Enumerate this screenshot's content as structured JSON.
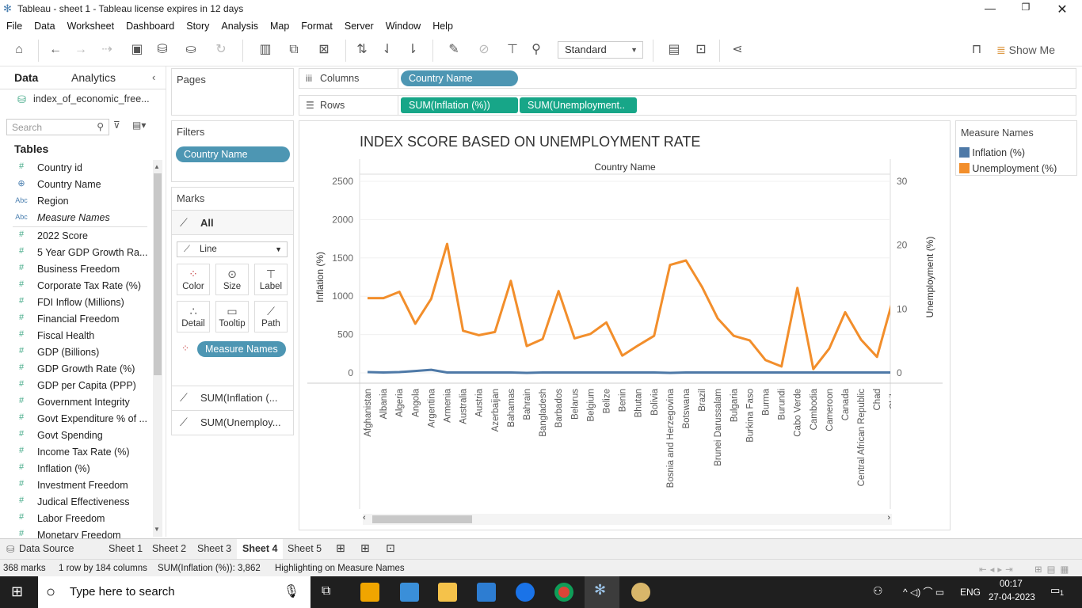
{
  "window": {
    "title": "Tableau - sheet 1 - Tableau license expires in 12 days"
  },
  "menu": [
    "File",
    "Data",
    "Worksheet",
    "Dashboard",
    "Story",
    "Analysis",
    "Map",
    "Format",
    "Server",
    "Window",
    "Help"
  ],
  "toolbar": {
    "view_mode": "Standard",
    "show_me": "Show Me"
  },
  "left_panel": {
    "tabs": [
      "Data",
      "Analytics"
    ],
    "datasource": "index_of_economic_free...",
    "search_placeholder": "Search",
    "tables_header": "Tables",
    "fields": [
      {
        "type": "#",
        "name": "Country id"
      },
      {
        "type": "globe",
        "name": "Country Name"
      },
      {
        "type": "Abc",
        "name": "Region"
      },
      {
        "type": "Abc",
        "name": "Measure Names"
      },
      {
        "type": "#",
        "name": "2022 Score"
      },
      {
        "type": "#",
        "name": "5 Year GDP Growth Ra..."
      },
      {
        "type": "#",
        "name": "Business Freedom"
      },
      {
        "type": "#",
        "name": "Corporate Tax Rate (%)"
      },
      {
        "type": "#",
        "name": "FDI Inflow (Millions)"
      },
      {
        "type": "#",
        "name": "Financial Freedom"
      },
      {
        "type": "#",
        "name": "Fiscal Health"
      },
      {
        "type": "#",
        "name": "GDP (Billions)"
      },
      {
        "type": "#",
        "name": "GDP Growth Rate (%)"
      },
      {
        "type": "#",
        "name": "GDP per Capita (PPP)"
      },
      {
        "type": "#",
        "name": "Government Integrity"
      },
      {
        "type": "#",
        "name": "Govt Expenditure % of ..."
      },
      {
        "type": "#",
        "name": "Govt Spending"
      },
      {
        "type": "#",
        "name": "Income Tax Rate (%)"
      },
      {
        "type": "#",
        "name": "Inflation (%)"
      },
      {
        "type": "#",
        "name": "Investment Freedom"
      },
      {
        "type": "#",
        "name": "Judical Effectiveness"
      },
      {
        "type": "#",
        "name": "Labor Freedom"
      },
      {
        "type": "#",
        "name": "Monetary Freedom"
      }
    ]
  },
  "pages": {
    "title": "Pages"
  },
  "filters": {
    "title": "Filters",
    "pill": "Country Name"
  },
  "marks": {
    "title": "Marks",
    "all_label": "All",
    "type": "Line",
    "buttons": [
      "Color",
      "Size",
      "Label",
      "Detail",
      "Tooltip",
      "Path"
    ],
    "color_pill": "Measure Names",
    "measures": [
      "SUM(Inflation (...",
      "SUM(Unemploy..."
    ]
  },
  "shelves": {
    "columns_label": "Columns",
    "columns_pill": "Country Name",
    "rows_label": "Rows",
    "rows_pills": [
      "SUM(Inflation (%))",
      "SUM(Unemployment.."
    ]
  },
  "chart_data": {
    "type": "line",
    "title": "INDEX SCORE BASED ON UNEMPLOYMENT RATE",
    "header": "Country Name",
    "ylabel_left": "Inflation (%)",
    "ylabel_right": "Unemployment (%)",
    "ylim_left": [
      0,
      2500
    ],
    "ylim_right": [
      0,
      30
    ],
    "left_ticks": [
      "2500",
      "2000",
      "1500",
      "1000",
      "500",
      "0"
    ],
    "right_ticks": [
      "30",
      "20",
      "10",
      "0"
    ],
    "categories": [
      "Afghanistan",
      "Albania",
      "Algeria",
      "Angola",
      "Argentina",
      "Armenia",
      "Australia",
      "Austria",
      "Azerbaijan",
      "Bahamas",
      "Bahrain",
      "Bangladesh",
      "Barbados",
      "Belarus",
      "Belgium",
      "Belize",
      "Benin",
      "Bhutan",
      "Bolivia",
      "Bosnia and Herzegovina",
      "Botswana",
      "Brazil",
      "Brunei Darussalam",
      "Bulgaria",
      "Burkina Faso",
      "Burma",
      "Burundi",
      "Cabo Verde",
      "Cambodia",
      "Cameroon",
      "Canada",
      "Central African Republic",
      "Chad",
      "Chile"
    ],
    "series": [
      {
        "name": "Inflation (%)",
        "color": "#4e79a7",
        "axis": "left",
        "values": [
          10,
          5,
          10,
          25,
          40,
          5,
          5,
          5,
          5,
          5,
          0,
          5,
          5,
          5,
          5,
          5,
          5,
          5,
          5,
          0,
          5,
          5,
          5,
          5,
          5,
          5,
          5,
          5,
          5,
          5,
          5,
          5,
          5,
          5
        ]
      },
      {
        "name": "Unemployment (%)",
        "color": "#f28e2b",
        "axis": "right",
        "values": [
          11.7,
          11.7,
          12.7,
          7.7,
          11.6,
          20.2,
          6.6,
          5.9,
          6.4,
          14.4,
          4.2,
          5.3,
          12.8,
          5.4,
          6.1,
          7.9,
          2.7,
          4.3,
          5.8,
          16.9,
          17.6,
          13.5,
          8.5,
          5.8,
          5.1,
          2.0,
          1.0,
          13.3,
          0.6,
          3.8,
          9.5,
          5.2,
          2.5,
          11.5
        ]
      }
    ]
  },
  "legend": {
    "title": "Measure Names",
    "items": [
      {
        "label": "Inflation (%)",
        "color": "#4e79a7"
      },
      {
        "label": "Unemployment (%)",
        "color": "#f28e2b"
      }
    ]
  },
  "sheet_tabs": [
    "Data Source",
    "Sheet 1",
    "Sheet 2",
    "Sheet 3",
    "Sheet 4",
    "Sheet 5"
  ],
  "status": {
    "marks": "368 marks",
    "dims": "1 row by 184 columns",
    "sum": "SUM(Inflation (%)): 3,862",
    "highlight": "Highlighting on Measure Names"
  },
  "taskbar": {
    "search_placeholder": "Type here to search",
    "lang": "ENG",
    "time": "00:17",
    "date": "27-04-2023",
    "notif": "1"
  }
}
